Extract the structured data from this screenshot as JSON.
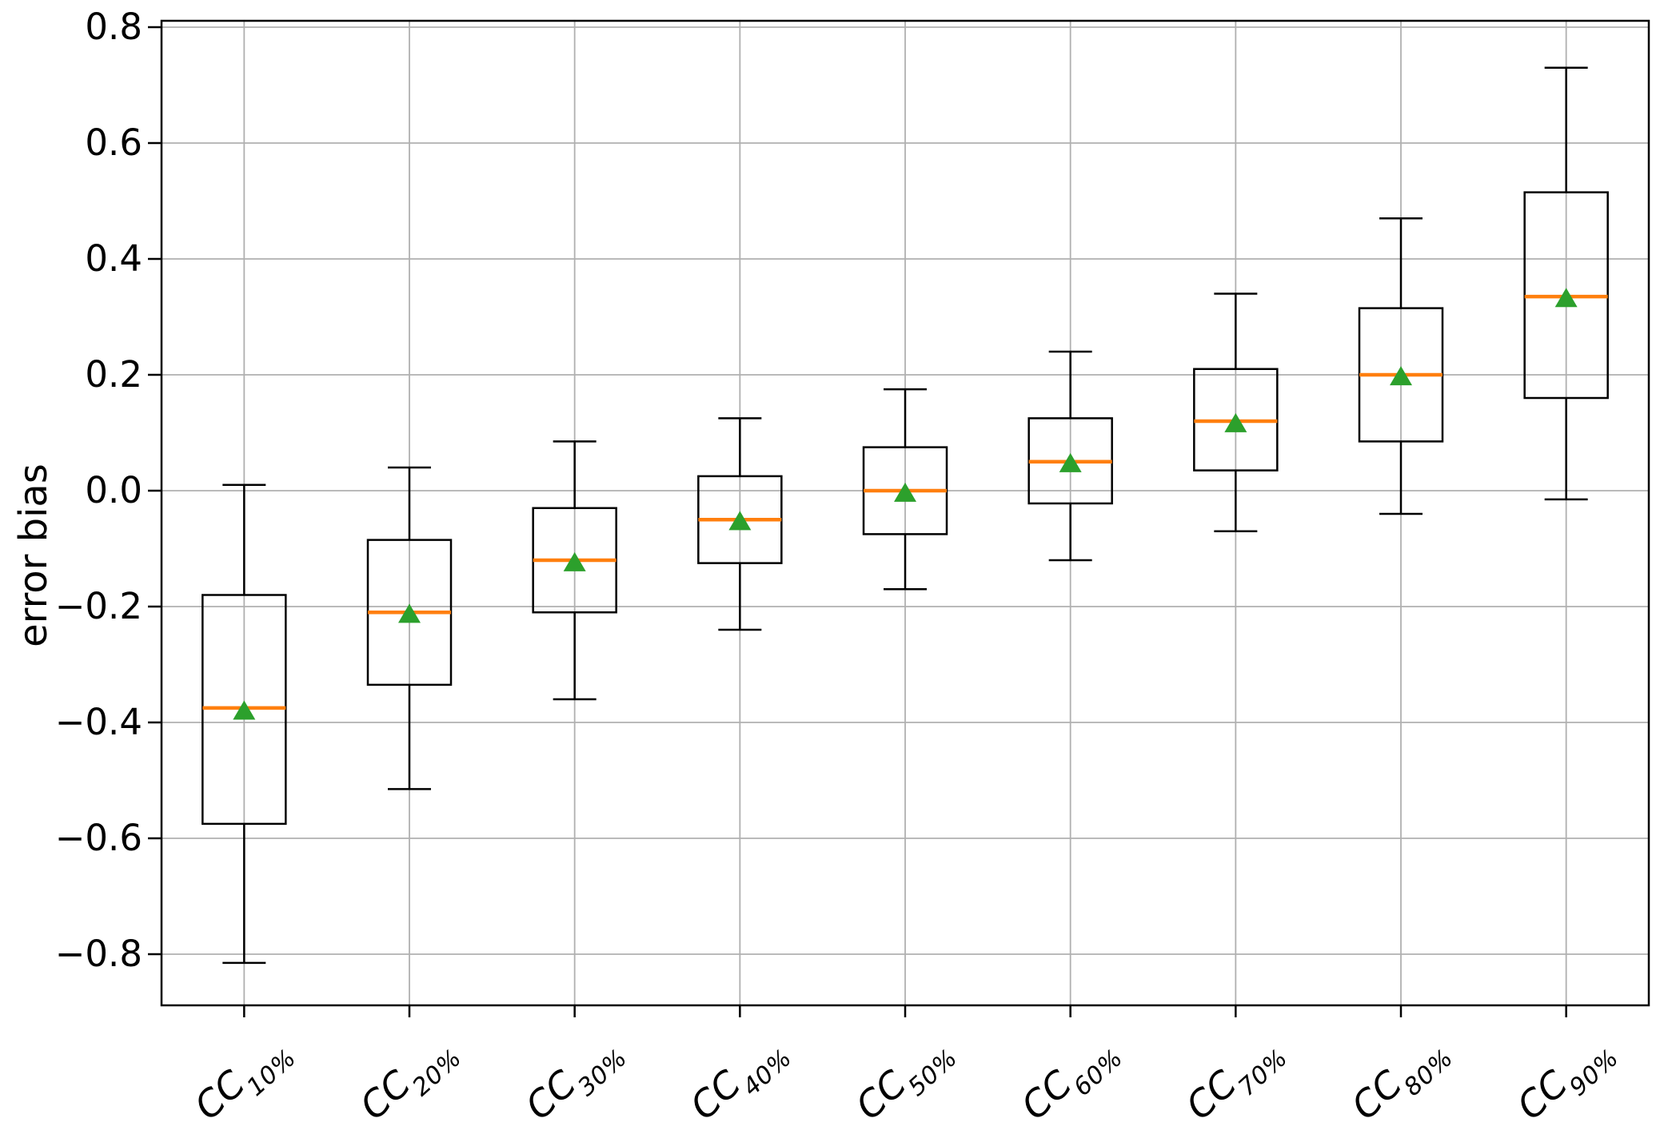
{
  "figure": {
    "background": "#ffffff"
  },
  "chart_data": {
    "type": "boxplot",
    "title": "",
    "xlabel": "",
    "ylabel": "error bias",
    "ylim": [
      -0.888,
      0.815
    ],
    "grid": "both",
    "legend": "none",
    "y_ticks": {
      "values": [
        0.8,
        0.6,
        0.4,
        0.2,
        0.0,
        -0.2,
        -0.4,
        -0.6,
        -0.8
      ],
      "labels": [
        "0.8",
        "0.6",
        "0.4",
        "0.2",
        "0.0",
        "−0.2",
        "−0.4",
        "−0.6",
        "−0.8"
      ]
    },
    "categories": [
      {
        "label": "CC10%",
        "base": "CC",
        "sub": "10%"
      },
      {
        "label": "CC20%",
        "base": "CC",
        "sub": "20%"
      },
      {
        "label": "CC30%",
        "base": "CC",
        "sub": "30%"
      },
      {
        "label": "CC40%",
        "base": "CC",
        "sub": "40%"
      },
      {
        "label": "CC50%",
        "base": "CC",
        "sub": "50%"
      },
      {
        "label": "CC60%",
        "base": "CC",
        "sub": "60%"
      },
      {
        "label": "CC70%",
        "base": "CC",
        "sub": "70%"
      },
      {
        "label": "CC80%",
        "base": "CC",
        "sub": "80%"
      },
      {
        "label": "CC90%",
        "base": "CC",
        "sub": "90%"
      }
    ],
    "boxes": [
      {
        "label": "CC10%",
        "whislo": -0.815,
        "q1": -0.575,
        "med": -0.375,
        "mean": -0.38,
        "q3": -0.18,
        "whishi": 0.01
      },
      {
        "label": "CC20%",
        "whislo": -0.515,
        "q1": -0.335,
        "med": -0.21,
        "mean": -0.213,
        "q3": -0.085,
        "whishi": 0.04
      },
      {
        "label": "CC30%",
        "whislo": -0.36,
        "q1": -0.21,
        "med": -0.12,
        "mean": -0.124,
        "q3": -0.03,
        "whishi": 0.085
      },
      {
        "label": "CC40%",
        "whislo": -0.24,
        "q1": -0.125,
        "med": -0.05,
        "mean": -0.053,
        "q3": 0.025,
        "whishi": 0.125
      },
      {
        "label": "CC50%",
        "whislo": -0.17,
        "q1": -0.075,
        "med": 0.0,
        "mean": -0.004,
        "q3": 0.075,
        "whishi": 0.175
      },
      {
        "label": "CC60%",
        "whislo": -0.12,
        "q1": -0.022,
        "med": 0.05,
        "mean": 0.047,
        "q3": 0.125,
        "whishi": 0.24
      },
      {
        "label": "CC70%",
        "whislo": -0.07,
        "q1": 0.035,
        "med": 0.12,
        "mean": 0.116,
        "q3": 0.21,
        "whishi": 0.34
      },
      {
        "label": "CC80%",
        "whislo": -0.04,
        "q1": 0.085,
        "med": 0.2,
        "mean": 0.197,
        "q3": 0.315,
        "whishi": 0.47
      },
      {
        "label": "CC90%",
        "whislo": -0.015,
        "q1": 0.16,
        "med": 0.335,
        "mean": 0.332,
        "q3": 0.515,
        "whishi": 0.73
      }
    ],
    "colors": {
      "box_line": "#000000",
      "whisker_line": "#000000",
      "median_line": "#ff7f0e",
      "mean_marker": "#2ca02c",
      "grid_line": "#b0b0b0",
      "axis_frame": "#000000",
      "tick_label": "#000000"
    }
  }
}
